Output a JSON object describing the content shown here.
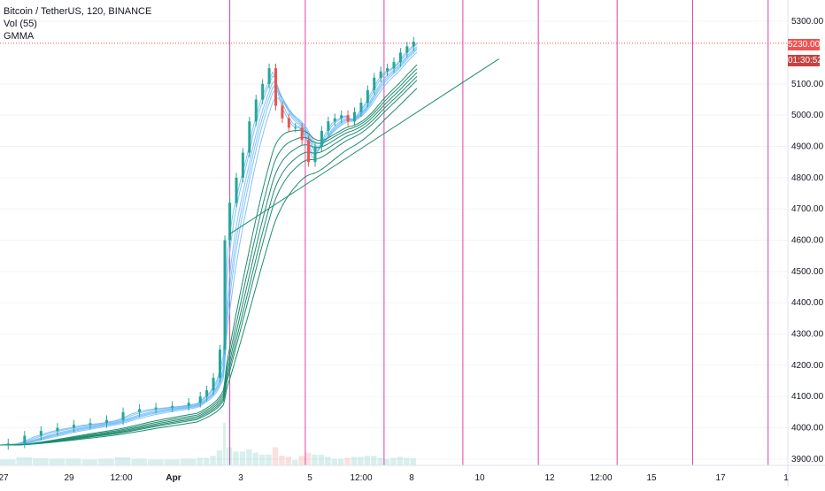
{
  "legend": {
    "symbol_line": "Bitcoin / TetherUS, 120, BINANCE",
    "volume_line": "Vol (55)",
    "indicator_line": "GMMA"
  },
  "price_tags": {
    "last_price": "5230.00",
    "countdown": "01:30:52"
  },
  "colors": {
    "bull": "#26a69a",
    "bear": "#ef5350",
    "gmma_short": "#64b5f6",
    "gmma_long": "#1e8c6e",
    "vertical_lines": "#e040a0",
    "last_price_line": "#ef5350",
    "grid": "#f0f3fa"
  },
  "chart_data": {
    "type": "line",
    "title": "Bitcoin / TetherUS, 120, BINANCE",
    "x_tick_labels": [
      "27",
      "29",
      "12:00",
      "Apr",
      "3",
      "5",
      "12:00",
      "8",
      "10",
      "12",
      "12:00",
      "15",
      "17",
      "1"
    ],
    "y_tick_labels": [
      "3900.00",
      "4000.00",
      "4100.00",
      "4200.00",
      "4300.00",
      "4400.00",
      "4500.00",
      "4600.00",
      "4700.00",
      "4800.00",
      "4900.00",
      "5000.00",
      "5100.00",
      "5300.00"
    ],
    "ylim": [
      3880,
      5340
    ],
    "last_price": 5230,
    "price_path": [
      [
        0,
        3945
      ],
      [
        5,
        3950
      ],
      [
        10,
        3975
      ],
      [
        15,
        3990
      ],
      [
        20,
        4000
      ],
      [
        25,
        4010
      ],
      [
        30,
        4015
      ],
      [
        35,
        4025
      ],
      [
        40,
        4050
      ],
      [
        45,
        4060
      ],
      [
        50,
        4065
      ],
      [
        55,
        4070
      ],
      [
        60,
        4080
      ],
      [
        62,
        4100
      ],
      [
        64,
        4120
      ],
      [
        66,
        4160
      ],
      [
        68,
        4250
      ],
      [
        69,
        4600
      ],
      [
        71,
        4720
      ],
      [
        73,
        4800
      ],
      [
        75,
        4880
      ],
      [
        77,
        4980
      ],
      [
        79,
        5050
      ],
      [
        81,
        5100
      ],
      [
        83,
        5150
      ],
      [
        85,
        5030
      ],
      [
        87,
        4990
      ],
      [
        89,
        4960
      ],
      [
        91,
        4960
      ],
      [
        93,
        4920
      ],
      [
        95,
        4850
      ],
      [
        97,
        4900
      ],
      [
        99,
        4950
      ],
      [
        101,
        4980
      ],
      [
        103,
        4990
      ],
      [
        105,
        5000
      ],
      [
        107,
        4980
      ],
      [
        109,
        5010
      ],
      [
        111,
        5040
      ],
      [
        113,
        5080
      ],
      [
        115,
        5120
      ],
      [
        117,
        5140
      ],
      [
        119,
        5150
      ],
      [
        121,
        5170
      ],
      [
        123,
        5200
      ],
      [
        125,
        5220
      ],
      [
        127,
        5235
      ]
    ],
    "vertical_line_positions": [
      70,
      93,
      117,
      141,
      164,
      188,
      211,
      234
    ]
  }
}
